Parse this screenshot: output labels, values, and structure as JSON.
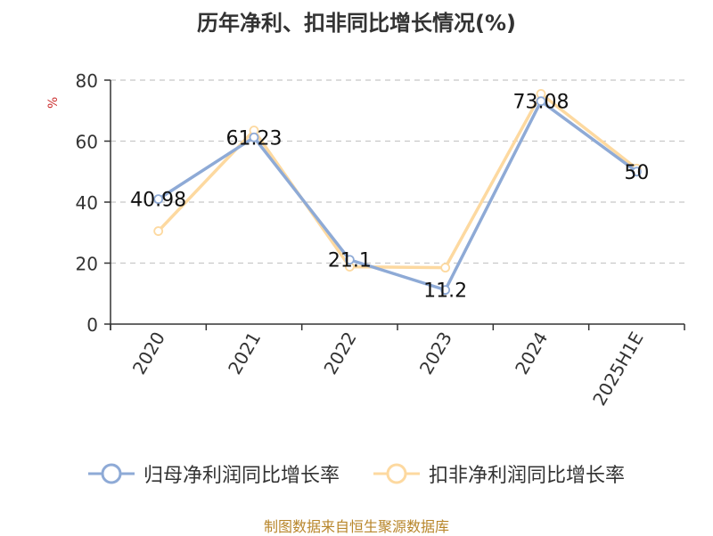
{
  "chart_data": {
    "type": "line",
    "title": "历年净利、扣非同比增长情况(%)",
    "ylabel": "%",
    "xlabel": "",
    "categories": [
      "2020",
      "2021",
      "2022",
      "2023",
      "2024",
      "2025H1E"
    ],
    "ylim": [
      0,
      80
    ],
    "yticks": [
      0,
      20,
      40,
      60,
      80
    ],
    "grid": true,
    "legend_position": "bottom",
    "series": [
      {
        "name": "归母净利润同比增长率",
        "color": "#8eaad6",
        "values": [
          40.98,
          61.23,
          21.1,
          11.2,
          73.08,
          50
        ]
      },
      {
        "name": "扣非净利润同比增长率",
        "color": "#fdd9a0",
        "values": [
          30.5,
          63.5,
          18.8,
          18.5,
          75.5,
          51
        ]
      }
    ],
    "data_labels": [
      "40.98",
      "61.23",
      "21.1",
      "11.2",
      "73.08",
      "50"
    ]
  },
  "source": "制图数据来自恒生聚源数据库"
}
